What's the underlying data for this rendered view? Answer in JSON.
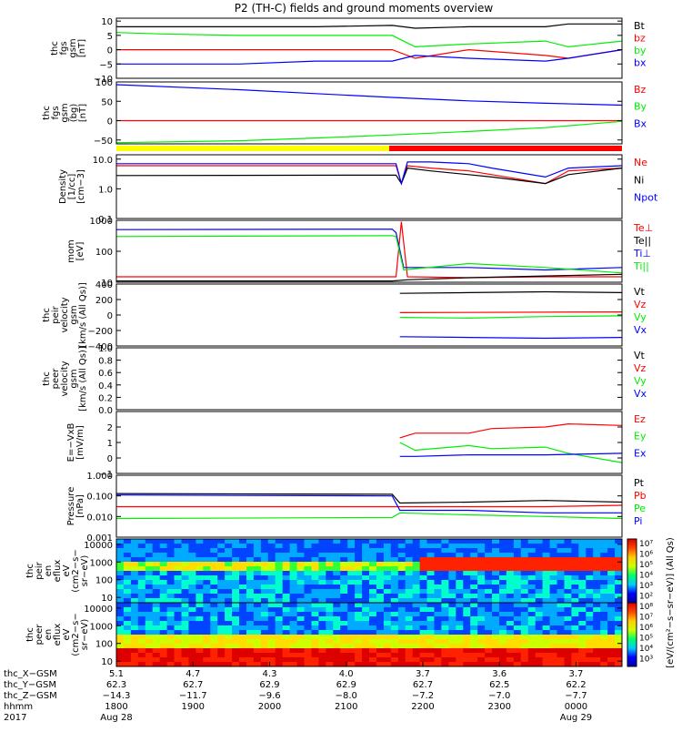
{
  "title": "P2 (TH-C) fields and ground moments overview",
  "colors": {
    "black": "#000000",
    "red": "#ff0000",
    "green": "#00ee00",
    "blue": "#0000ff",
    "yellow": "#ffff00"
  },
  "chart_data": [
    {
      "type": "line",
      "ylabel": [
        "thc",
        "fgs",
        "gsm",
        "[nT]"
      ],
      "yticks": [
        "10",
        "5",
        "0",
        "−5",
        "−10"
      ],
      "ytick_values": [
        10,
        5,
        0,
        -5,
        -10
      ],
      "ylim": [
        -10,
        11
      ],
      "series": [
        {
          "name": "Bt",
          "color": "black",
          "x": [
            1740,
            1800,
            1900,
            2000,
            2100,
            2130,
            2200,
            2300,
            2330,
            2400
          ],
          "y": [
            8,
            8,
            8,
            8,
            8.5,
            7.5,
            8,
            8,
            9,
            9
          ]
        },
        {
          "name": "bz",
          "color": "red",
          "x": [
            1740,
            1800,
            1900,
            2000,
            2100,
            2130,
            2200,
            2300,
            2330,
            2400
          ],
          "y": [
            0,
            0,
            0,
            0,
            0,
            -3,
            0,
            -2,
            -3,
            0
          ]
        },
        {
          "name": "by",
          "color": "green",
          "x": [
            1740,
            1800,
            1900,
            2000,
            2100,
            2130,
            2200,
            2300,
            2330,
            2400
          ],
          "y": [
            6,
            5.5,
            5,
            5,
            5,
            1,
            2,
            3,
            1,
            3
          ]
        },
        {
          "name": "bx",
          "color": "blue",
          "x": [
            1740,
            1800,
            1900,
            2000,
            2100,
            2130,
            2200,
            2300,
            2330,
            2400
          ],
          "y": [
            -5,
            -5,
            -5,
            -4,
            -4,
            -2,
            -3,
            -4,
            -3,
            0
          ]
        }
      ]
    },
    {
      "type": "line",
      "ylabel": [
        "thc",
        "fgs",
        "gsm",
        "(bg)",
        "[nT]"
      ],
      "yticks": [
        "100",
        "50",
        "0",
        "−50"
      ],
      "ytick_values": [
        100,
        50,
        0,
        -50
      ],
      "ylim": [
        -60,
        100
      ],
      "series": [
        {
          "name": "Bz",
          "color": "red",
          "x": [
            1740,
            2400
          ],
          "y": [
            0,
            0
          ]
        },
        {
          "name": "By",
          "color": "green",
          "x": [
            1740,
            1900,
            2000,
            2100,
            2200,
            2300,
            2400
          ],
          "y": [
            -57,
            -52,
            -45,
            -37,
            -28,
            -18,
            -2
          ]
        },
        {
          "name": "Bx",
          "color": "blue",
          "x": [
            1740,
            1900,
            2000,
            2100,
            2200,
            2300,
            2400
          ],
          "y": [
            93,
            80,
            70,
            60,
            51,
            45,
            40
          ]
        }
      ]
    },
    {
      "type": "line",
      "scale": "log",
      "ylabel": [
        "Density",
        "[1/cc]",
        "[cm−3]"
      ],
      "yticks": [
        "10.0",
        "1.0",
        "0.1"
      ],
      "ytick_values": [
        10,
        1,
        0.1
      ],
      "ylim": [
        0.1,
        14
      ],
      "series": [
        {
          "name": "Ne",
          "color": "red",
          "x": [
            1740,
            2105,
            2112,
            2120,
            2150,
            2200,
            2230,
            2300,
            2330,
            2400
          ],
          "y": [
            6,
            6,
            1.5,
            6,
            5,
            4,
            3,
            1.5,
            4,
            5
          ]
        },
        {
          "name": "Ni",
          "color": "black",
          "x": [
            1740,
            2105,
            2112,
            2120,
            2150,
            2200,
            2230,
            2300,
            2330,
            2400
          ],
          "y": [
            2.8,
            2.9,
            1.5,
            5,
            4,
            3,
            2.5,
            1.5,
            3,
            5
          ]
        },
        {
          "name": "Npot",
          "color": "blue",
          "x": [
            1740,
            2105,
            2112,
            2120,
            2150,
            2200,
            2230,
            2300,
            2330,
            2400
          ],
          "y": [
            7,
            7,
            1.5,
            8,
            8,
            7,
            5,
            2.5,
            5,
            6
          ]
        }
      ]
    },
    {
      "type": "line",
      "scale": "log",
      "ylabel": [
        "mom",
        "[eV]"
      ],
      "yticks": [
        "1000",
        "100",
        "10"
      ],
      "ytick_values": [
        1000,
        100,
        10
      ],
      "ylim": [
        10,
        1000
      ],
      "series": [
        {
          "name": "Te⊥",
          "color": "red",
          "x": [
            1740,
            2100,
            2105,
            2112,
            2120,
            2200,
            2300,
            2400
          ],
          "y": [
            15,
            15,
            15,
            900,
            15,
            14,
            15,
            15
          ]
        },
        {
          "name": "Te||",
          "color": "black",
          "x": [
            1740,
            2100,
            2120,
            2200,
            2300,
            2400
          ],
          "y": [
            11,
            11,
            12,
            14,
            16,
            18
          ]
        },
        {
          "name": "Ti⊥",
          "color": "blue",
          "x": [
            1740,
            2100,
            2105,
            2115,
            2200,
            2300,
            2400
          ],
          "y": [
            500,
            520,
            400,
            30,
            30,
            25,
            30
          ]
        },
        {
          "name": "Ti||",
          "color": "green",
          "x": [
            1740,
            2100,
            2105,
            2115,
            2200,
            2300,
            2400
          ],
          "y": [
            300,
            320,
            300,
            25,
            40,
            30,
            20
          ]
        }
      ]
    },
    {
      "type": "line",
      "ylabel": [
        "thc",
        "peir",
        "velocity",
        "gsm",
        "[km/s (All Qs)]"
      ],
      "yticks": [
        "400",
        "200",
        "0",
        "−200",
        "−400"
      ],
      "ytick_values": [
        400,
        200,
        0,
        -200,
        -400
      ],
      "ylim": [
        -400,
        400
      ],
      "series": [
        {
          "name": "Vt",
          "color": "black",
          "x": [
            2110,
            2200,
            2300,
            2400
          ],
          "y": [
            280,
            290,
            300,
            290
          ]
        },
        {
          "name": "Vz",
          "color": "red",
          "x": [
            2110,
            2400
          ],
          "y": [
            30,
            40
          ]
        },
        {
          "name": "Vy",
          "color": "green",
          "x": [
            2110,
            2200,
            2300,
            2400
          ],
          "y": [
            -30,
            -40,
            -20,
            -10
          ]
        },
        {
          "name": "Vx",
          "color": "blue",
          "x": [
            2110,
            2200,
            2300,
            2400
          ],
          "y": [
            -280,
            -290,
            -300,
            -290
          ]
        }
      ]
    },
    {
      "type": "line",
      "ylabel": [
        "thc",
        "peer",
        "velocity",
        "gsm",
        "[km/s (All Qs)]"
      ],
      "yticks": [
        "1.0",
        "0.8",
        "0.6",
        "0.4",
        "0.2",
        "0.0"
      ],
      "ytick_values": [
        1,
        0.8,
        0.6,
        0.4,
        0.2,
        0
      ],
      "ylim": [
        0,
        1
      ],
      "series": [
        {
          "name": "Vt",
          "color": "black",
          "x": [],
          "y": []
        },
        {
          "name": "Vz",
          "color": "red",
          "x": [],
          "y": []
        },
        {
          "name": "Vy",
          "color": "green",
          "x": [],
          "y": []
        },
        {
          "name": "Vx",
          "color": "blue",
          "x": [],
          "y": []
        }
      ]
    },
    {
      "type": "line",
      "ylabel": [
        "E=−VxB",
        "[mV/m]"
      ],
      "yticks": [
        "2",
        "1",
        "0",
        "−1"
      ],
      "ytick_values": [
        2,
        1,
        0,
        -1
      ],
      "ylim": [
        -1,
        3
      ],
      "series": [
        {
          "name": "Ez",
          "color": "red",
          "x": [
            2110,
            2130,
            2200,
            2230,
            2300,
            2330,
            2400
          ],
          "y": [
            1.3,
            1.6,
            1.6,
            1.9,
            2.0,
            2.2,
            2.1
          ]
        },
        {
          "name": "Ey",
          "color": "green",
          "x": [
            2110,
            2130,
            2200,
            2230,
            2300,
            2330,
            2400
          ],
          "y": [
            1.0,
            0.5,
            0.8,
            0.6,
            0.7,
            0.3,
            -0.3
          ]
        },
        {
          "name": "Ex",
          "color": "blue",
          "x": [
            2110,
            2130,
            2200,
            2300,
            2400
          ],
          "y": [
            0.1,
            0.1,
            0.2,
            0.2,
            0.3
          ]
        }
      ]
    },
    {
      "type": "line",
      "scale": "log",
      "ylabel": [
        "Pressure",
        "[nPa]"
      ],
      "yticks": [
        "1.000",
        "0.100",
        "0.010",
        "0.001"
      ],
      "ytick_values": [
        1,
        0.1,
        0.01,
        0.001
      ],
      "ylim": [
        0.001,
        1
      ],
      "series": [
        {
          "name": "Pt",
          "color": "black",
          "x": [
            1740,
            2100,
            2110,
            2200,
            2300,
            2400
          ],
          "y": [
            0.13,
            0.12,
            0.045,
            0.05,
            0.06,
            0.05
          ]
        },
        {
          "name": "Pb",
          "color": "red",
          "x": [
            1740,
            2100,
            2200,
            2300,
            2400
          ],
          "y": [
            0.03,
            0.03,
            0.03,
            0.03,
            0.035
          ]
        },
        {
          "name": "Pe",
          "color": "green",
          "x": [
            1740,
            2100,
            2110,
            2200,
            2300,
            2400
          ],
          "y": [
            0.008,
            0.009,
            0.015,
            0.012,
            0.01,
            0.008
          ]
        },
        {
          "name": "Pi",
          "color": "blue",
          "x": [
            1740,
            2100,
            2110,
            2200,
            2300,
            2400
          ],
          "y": [
            0.11,
            0.1,
            0.02,
            0.02,
            0.015,
            0.015
          ]
        }
      ]
    },
    {
      "type": "heatmap",
      "ylabel": [
        "thc",
        "peir",
        "en",
        "eflux",
        "eV",
        "(cm2−s−",
        "sr−eV)"
      ],
      "yticks": [
        "10000",
        "1000",
        "100",
        "10"
      ],
      "ytick_values": [
        10000,
        1000,
        100,
        10
      ],
      "ylim": [
        5,
        20000
      ]
    },
    {
      "type": "heatmap",
      "ylabel": [
        "thc",
        "peer",
        "en",
        "eflux",
        "eV",
        "(cm2−s−",
        "sr−eV)"
      ],
      "yticks": [
        "10000",
        "1000",
        "100",
        "10"
      ],
      "ytick_values": [
        10000,
        1000,
        100,
        10
      ],
      "ylim": [
        5,
        20000
      ]
    }
  ],
  "colorbar": {
    "labels": [
      "10⁷",
      "10⁶",
      "10⁵",
      "10⁴",
      "10³",
      "10²",
      "10⁸",
      "10⁷",
      "10⁶",
      "10⁵",
      "10⁴",
      "10³"
    ],
    "unit": "[eV/(cm²−s−sr−eV)] (All Qs)"
  },
  "xaxis": {
    "xlim": [
      1740,
      2400
    ],
    "row_labels": [
      "thc_X−GSM",
      "thc_Y−GSM",
      "thc_Z−GSM",
      "hhmm",
      "2017"
    ],
    "ticks": [
      {
        "x": 1740,
        "xgsm": "5.1",
        "ygsm": "62.3",
        "zgsm": "−14.3",
        "hhmm": "1800",
        "date": "Aug 28"
      },
      {
        "x": 1840,
        "xgsm": "4.7",
        "ygsm": "62.7",
        "zgsm": "−11.7",
        "hhmm": "1900",
        "date": ""
      },
      {
        "x": 1940,
        "xgsm": "4.3",
        "ygsm": "62.9",
        "zgsm": "−9.6",
        "hhmm": "2000",
        "date": ""
      },
      {
        "x": 2040,
        "xgsm": "4.0",
        "ygsm": "62.9",
        "zgsm": "−8.0",
        "hhmm": "2100",
        "date": ""
      },
      {
        "x": 2140,
        "xgsm": "3.7",
        "ygsm": "62.7",
        "zgsm": "−7.2",
        "hhmm": "2200",
        "date": ""
      },
      {
        "x": 2240,
        "xgsm": "3.6",
        "ygsm": "62.5",
        "zgsm": "−7.0",
        "hhmm": "2300",
        "date": ""
      },
      {
        "x": 2340,
        "xgsm": "3.7",
        "ygsm": "62.2",
        "zgsm": "−7.7",
        "hhmm": "0000",
        "date": "Aug 29"
      }
    ]
  }
}
